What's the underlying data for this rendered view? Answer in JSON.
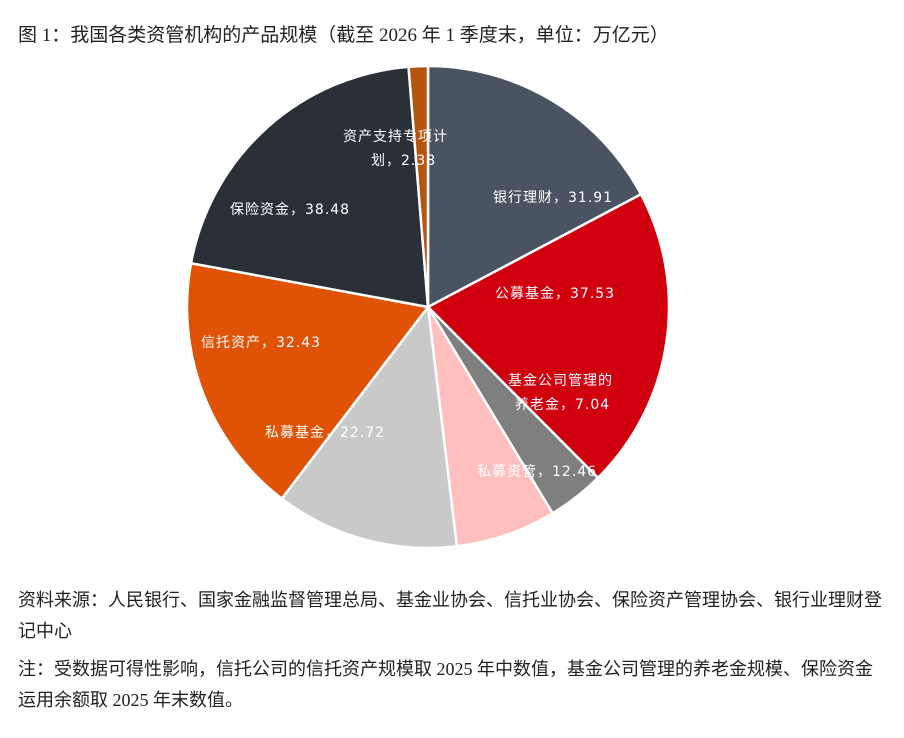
{
  "chart_data": {
    "type": "pie",
    "title": "图 1：我国各类资管机构的产品规模（截至 2026 年 1 季度末，单位：万亿元）",
    "values": [
      31.91,
      37.53,
      7.04,
      12.46,
      22.72,
      32.43,
      38.48,
      2.38
    ],
    "value_labels": [
      "银行理财，31.91",
      "公募基金，37.53",
      "基金公司管理的养老金，7.04",
      "私募资管，12.46",
      "私募基金，22.72",
      "信托资产，32.43",
      "保险资金，38.48",
      "资产支持专项计划，2.38"
    ],
    "colors": [
      "#4a5361",
      "#d0000f",
      "#7f7f7f",
      "#ffbfbf",
      "#c9c9c9",
      "#e05206",
      "#2b3038",
      "#b5540f"
    ],
    "source": "资料来源：人民银行、国家金融监督管理总局、基金业协会、信托业协会、保险资产管理协会、银行业理财登记中心",
    "note": "注：受数据可得性影响，信托公司的信托资产规模取 2025 年中数值，基金公司管理的养老金规模、保险资金运用余额取 2025 年末数值。"
  }
}
